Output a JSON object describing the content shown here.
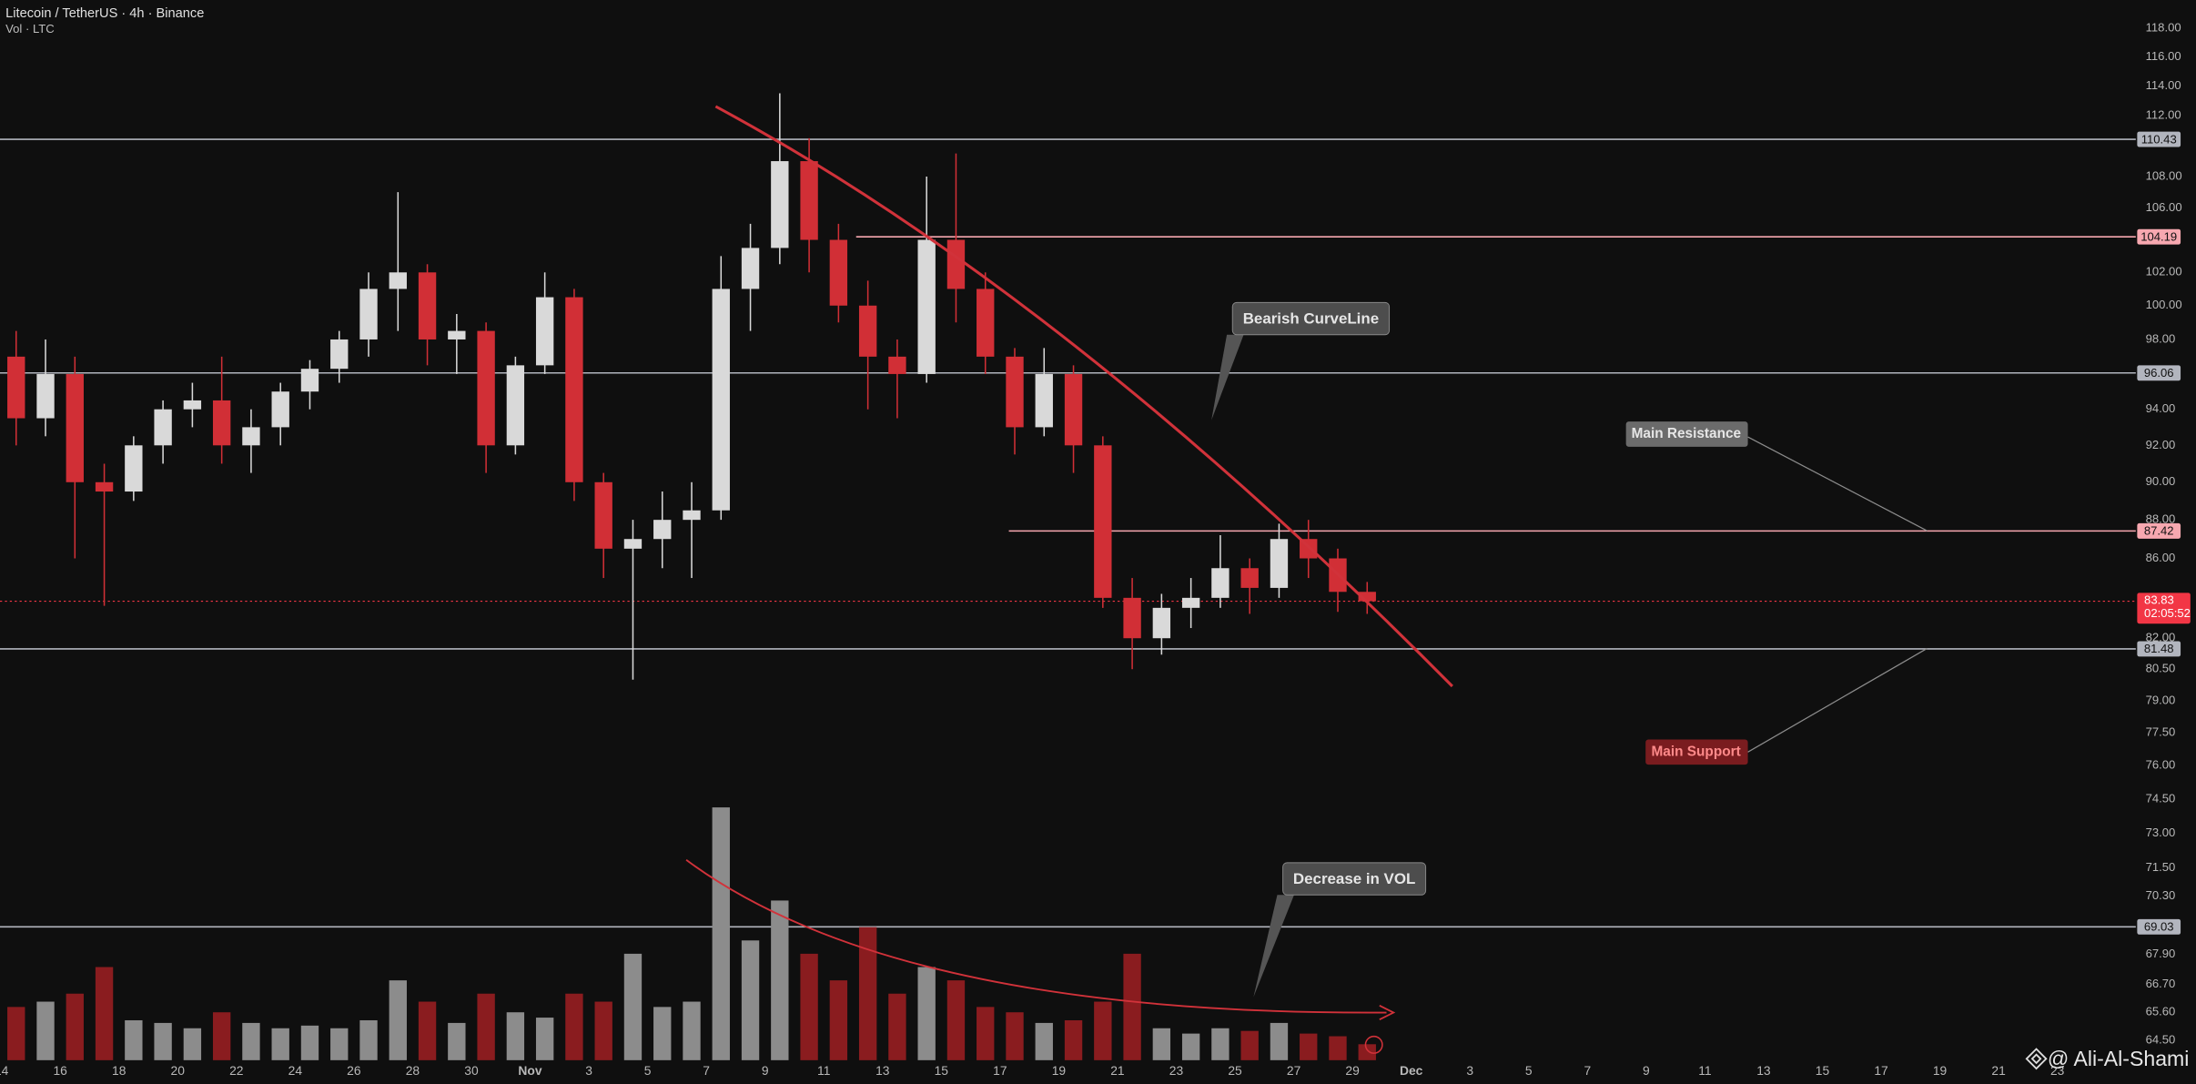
{
  "chart_data": {
    "type": "candlestick",
    "title": "Litecoin / TetherUS · 4h · Binance",
    "subtitle": "Vol · LTC",
    "log_scale": true,
    "x": [
      14,
      15,
      16,
      17,
      18,
      19,
      20,
      21,
      22,
      23,
      24,
      25,
      26,
      27,
      28,
      29,
      30,
      31,
      32,
      33,
      34,
      35,
      36,
      37,
      38,
      39,
      40,
      41,
      42,
      43,
      44,
      45,
      46,
      47,
      48,
      49,
      50,
      51,
      52,
      53,
      54,
      55,
      56,
      57,
      58,
      59,
      60
    ],
    "open": [
      97,
      93.5,
      96,
      90,
      89.5,
      92,
      94,
      94.5,
      92,
      93,
      95,
      96.3,
      98,
      101,
      102,
      98,
      98.5,
      92,
      96.5,
      100.5,
      90,
      86.5,
      87,
      88,
      88.5,
      101,
      103.5,
      109,
      104,
      100,
      97,
      96,
      104,
      101,
      97,
      93,
      96,
      92,
      84,
      82,
      83.5,
      84,
      85.5,
      84.5,
      87,
      86,
      84.3
    ],
    "high": [
      98.5,
      98,
      97,
      91,
      92.5,
      94.5,
      95.5,
      97,
      94,
      95.5,
      96.8,
      98.5,
      102,
      107,
      102.5,
      99.5,
      99,
      97,
      102,
      101,
      90.5,
      88,
      89.5,
      90,
      103,
      105,
      113.5,
      110.5,
      105,
      101.5,
      98,
      108,
      109.5,
      102,
      97.5,
      97.5,
      96.5,
      92.5,
      85,
      84.2,
      85,
      87.2,
      86,
      87.8,
      88,
      86.5,
      84.8
    ],
    "low": [
      92,
      92.5,
      86,
      83.6,
      89,
      91,
      93,
      91,
      90.5,
      92,
      94,
      95.5,
      97,
      98.5,
      96.5,
      96,
      90.5,
      91.5,
      96,
      89,
      85,
      80,
      85.5,
      85,
      88,
      98.5,
      102.5,
      102,
      99,
      94,
      93.5,
      95.5,
      99,
      96,
      91.5,
      92.5,
      90.5,
      83.5,
      80.5,
      81.2,
      82.5,
      83.5,
      83.2,
      84,
      85,
      83.3,
      83.2
    ],
    "close": [
      93.5,
      96,
      90,
      89.5,
      92,
      94,
      94.5,
      92,
      93,
      95,
      96.3,
      98,
      101,
      102,
      98,
      98.5,
      92,
      96.5,
      100.5,
      90,
      86.5,
      87,
      88,
      88.5,
      101,
      103.5,
      109,
      104,
      100,
      97,
      96,
      104,
      101,
      97,
      93,
      96,
      92,
      84,
      82,
      83.5,
      84,
      85.5,
      84.5,
      87,
      86,
      84.3,
      83.83
    ],
    "volume": [
      20,
      22,
      25,
      35,
      15,
      14,
      12,
      18,
      14,
      12,
      13,
      12,
      15,
      30,
      22,
      14,
      25,
      18,
      16,
      25,
      22,
      40,
      20,
      22,
      95,
      45,
      60,
      40,
      30,
      50,
      25,
      35,
      30,
      20,
      18,
      14,
      15,
      22,
      40,
      12,
      10,
      12,
      11,
      14,
      10,
      9,
      6
    ],
    "up_color": "#d9d9d9",
    "down_color": "#d12f36",
    "vol_up_color": "#8c8c8c",
    "vol_down_color": "#8a1c1f",
    "vlim": [
      0,
      100
    ],
    "xlim": [
      13.95,
      86.67
    ],
    "xticks": [
      {
        "value": 14,
        "label": "14"
      },
      16,
      18,
      20,
      22,
      24,
      26,
      28,
      30,
      {
        "value": 32,
        "label": "Nov"
      },
      {
        "value": 34,
        "label": "3"
      },
      {
        "value": 36,
        "label": "5"
      },
      {
        "value": 38,
        "label": "7"
      },
      {
        "value": 40,
        "label": "9"
      },
      {
        "value": 42,
        "label": "11"
      },
      {
        "value": 44,
        "label": "13"
      },
      {
        "value": 46,
        "label": "15"
      },
      {
        "value": 48,
        "label": "17"
      },
      {
        "value": 50,
        "label": "19"
      },
      {
        "value": 52,
        "label": "21"
      },
      {
        "value": 54,
        "label": "23"
      },
      {
        "value": 56,
        "label": "25"
      },
      {
        "value": 58,
        "label": "27"
      },
      {
        "value": 60,
        "label": "29"
      },
      {
        "value": 62,
        "label": "Dec"
      },
      {
        "value": 64,
        "label": "3"
      },
      {
        "value": 66,
        "label": "5"
      },
      {
        "value": 68,
        "label": "7"
      },
      {
        "value": 70,
        "label": "9"
      },
      {
        "value": 72,
        "label": "11"
      },
      {
        "value": 74,
        "label": "13"
      },
      {
        "value": 76,
        "label": "15"
      },
      {
        "value": 78,
        "label": "17"
      },
      {
        "value": 80,
        "label": "19"
      },
      {
        "value": 82,
        "label": "21"
      },
      {
        "value": 84,
        "label": "23"
      }
    ],
    "ylim": [
      63.75,
      120
    ],
    "yticks": [
      {
        "value": 118,
        "label": "118.00"
      },
      {
        "value": 116,
        "label": "116.00"
      },
      {
        "value": 114,
        "label": "114.00"
      },
      {
        "value": 112,
        "label": "112.00"
      },
      {
        "value": 108,
        "label": "108.00"
      },
      {
        "value": 106,
        "label": "106.00"
      },
      {
        "value": 102,
        "label": "102.00"
      },
      {
        "value": 100,
        "label": "100.00"
      },
      {
        "value": 98,
        "label": "98.00"
      },
      {
        "value": 94,
        "label": "94.00"
      },
      {
        "value": 92,
        "label": "92.00"
      },
      {
        "value": 90,
        "label": "90.00"
      },
      {
        "value": 88,
        "label": "88.00"
      },
      {
        "value": 86,
        "label": "86.00"
      },
      {
        "value": 82,
        "label": "82.00"
      },
      {
        "value": 80.5,
        "label": "80.50"
      },
      {
        "value": 79,
        "label": "79.00"
      },
      {
        "value": 77.5,
        "label": "77.50"
      },
      {
        "value": 76,
        "label": "76.00"
      },
      {
        "value": 74.5,
        "label": "74.50"
      },
      {
        "value": 73,
        "label": "73.00"
      },
      {
        "value": 71.5,
        "label": "71.50"
      },
      {
        "value": 70.3,
        "label": "70.30"
      },
      {
        "value": 67.9,
        "label": "67.90"
      },
      {
        "value": 66.7,
        "label": "66.70"
      },
      {
        "value": 65.6,
        "label": "65.60"
      },
      {
        "value": 64.5,
        "label": "64.50"
      }
    ],
    "levels": [
      {
        "value": 110.43,
        "color": "#b2b5be"
      },
      {
        "value": 104.19,
        "color": "#f7a8b0",
        "start": 43.1
      },
      {
        "value": 96.06,
        "color": "#b2b5be"
      },
      {
        "value": 87.42,
        "color": "#f7a8b0",
        "start": 48.3
      },
      {
        "value": 81.48,
        "color": "#b2b5be"
      },
      {
        "value": 69.03,
        "color": "#b2b5be"
      }
    ],
    "current_price": {
      "value": 83.83,
      "countdown": "02:05:52",
      "color": "#f23645"
    },
    "annotations": [
      "Bearish CurveLine",
      "Main Resistance",
      "Main Support",
      "Decrease in VOL"
    ],
    "watermark": "@ Ali-Al-Shami"
  }
}
